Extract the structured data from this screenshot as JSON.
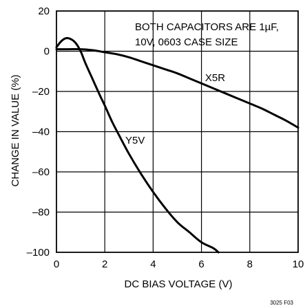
{
  "chart_data": {
    "type": "line",
    "xlabel": "DC BIAS VOLTAGE (V)",
    "ylabel": "CHANGE IN VALUE (%)",
    "xlim": [
      0,
      10
    ],
    "ylim": [
      -100,
      20
    ],
    "x_ticks": [
      0,
      2,
      4,
      6,
      8,
      10
    ],
    "y_ticks": [
      20,
      0,
      -20,
      -40,
      -60,
      -80,
      -100
    ],
    "x_tick_labels": [
      "0",
      "2",
      "4",
      "6",
      "8",
      "10"
    ],
    "y_tick_labels": [
      "20",
      "0",
      "–20",
      "–40",
      "–60",
      "–80",
      "–100"
    ],
    "grid": true,
    "annotation": [
      "BOTH CAPACITORS ARE 1µF,",
      "10V, 0603 CASE SIZE"
    ],
    "figure_id": "3025 F03",
    "series": [
      {
        "name": "X5R",
        "x": [
          0,
          0.5,
          1,
          1.5,
          2,
          2.5,
          3,
          3.5,
          4,
          4.5,
          5,
          5.5,
          6,
          6.5,
          7,
          7.5,
          8,
          8.5,
          9,
          9.5,
          10
        ],
        "y": [
          1,
          1,
          1,
          0.5,
          -0.5,
          -1.5,
          -3,
          -5,
          -7,
          -9,
          -11,
          -13.5,
          -16,
          -18.5,
          -21,
          -23.5,
          -26,
          -28.5,
          -31.5,
          -34.5,
          -38
        ]
      },
      {
        "name": "Y5V",
        "x": [
          0,
          0.2,
          0.4,
          0.6,
          0.8,
          1,
          1.2,
          1.5,
          1.8,
          2,
          2.3,
          2.6,
          3,
          3.5,
          4,
          4.5,
          5,
          5.5,
          6,
          6.5,
          6.7
        ],
        "y": [
          2,
          5,
          6.5,
          6,
          4,
          0,
          -6,
          -14,
          -22,
          -27,
          -35,
          -42,
          -51,
          -61,
          -70,
          -78,
          -85,
          -90,
          -95,
          -98,
          -100
        ]
      }
    ],
    "series_label_anchors": [
      {
        "name": "X5R",
        "x": 6.15,
        "y": -14.8
      },
      {
        "name": "Y5V",
        "x": 2.85,
        "y": -46
      }
    ]
  }
}
